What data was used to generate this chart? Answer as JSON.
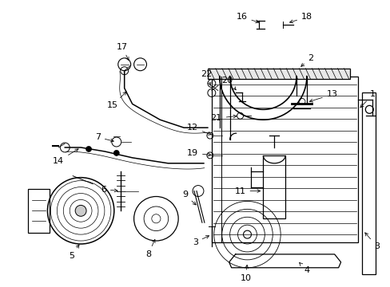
{
  "bg_color": "#ffffff",
  "fg_color": "#000000",
  "fig_width": 4.89,
  "fig_height": 3.6,
  "dpi": 100
}
